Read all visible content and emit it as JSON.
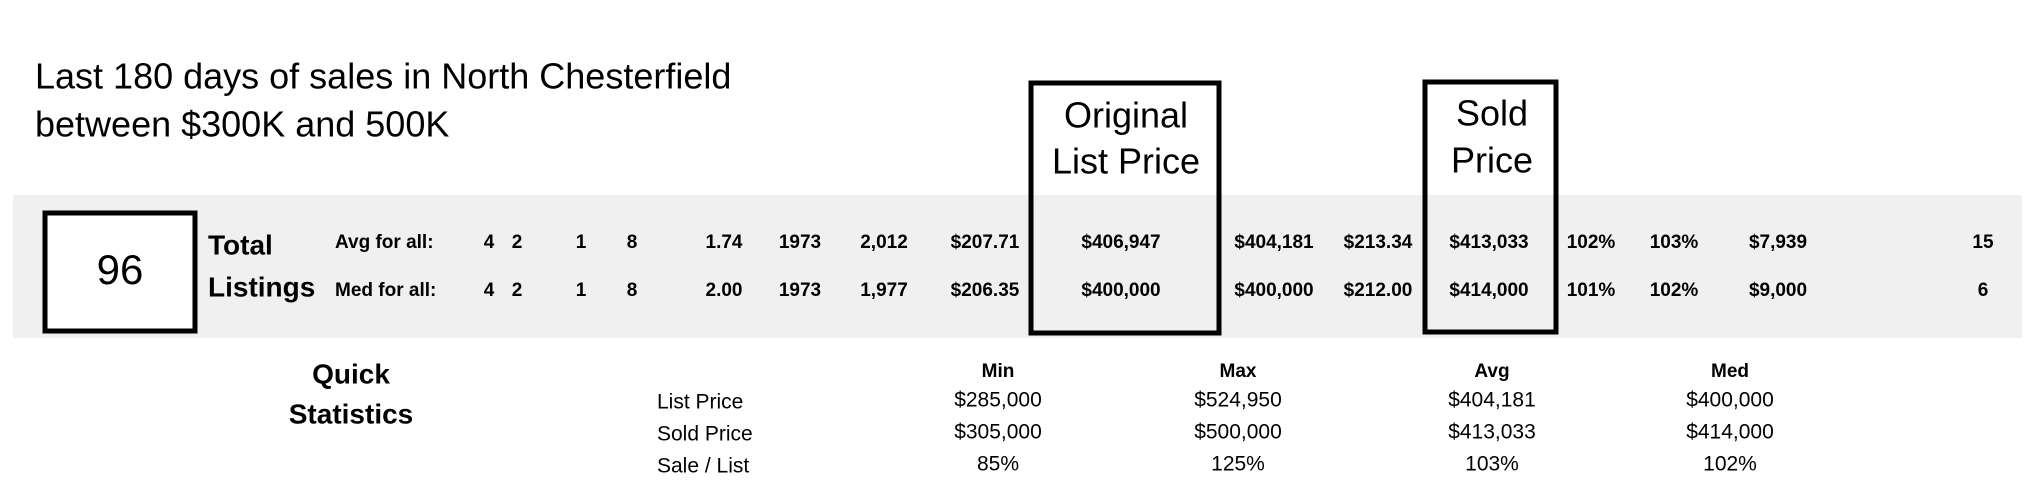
{
  "header": {
    "title_lines": [
      "Last 180 days of sales in North Chesterfield",
      "between $300K and 500K"
    ]
  },
  "summary": {
    "count": "96",
    "count_label_lines": [
      "Total",
      "Listings"
    ],
    "rows": [
      {
        "label": "Avg for all:",
        "values": [
          "4",
          "2",
          "1",
          "8",
          "1.74",
          "1973",
          "2,012",
          "$207.71",
          "$406,947",
          "$404,181",
          "$213.34",
          "$413,033",
          "102%",
          "103%",
          "$7,939",
          "15"
        ]
      },
      {
        "label": "Med for all:",
        "values": [
          "4",
          "2",
          "1",
          "8",
          "2.00",
          "1973",
          "1,977",
          "$206.35",
          "$400,000",
          "$400,000",
          "$212.00",
          "$414,000",
          "101%",
          "102%",
          "$9,000",
          "6"
        ]
      }
    ],
    "highlights": [
      {
        "lines": [
          "Original",
          "List Price"
        ]
      },
      {
        "lines": [
          "Sold",
          "Price"
        ]
      }
    ]
  },
  "quick_stats": {
    "title_lines": [
      "Quick",
      "Statistics"
    ],
    "headers": [
      "Min",
      "Max",
      "Avg",
      "Med"
    ],
    "rows": [
      {
        "label": "List Price",
        "values": [
          "$285,000",
          "$524,950",
          "$404,181",
          "$400,000"
        ]
      },
      {
        "label": "Sold Price",
        "values": [
          "$305,000",
          "$500,000",
          "$413,033",
          "$414,000"
        ]
      },
      {
        "label": "Sale / List",
        "values": [
          "85%",
          "125%",
          "103%",
          "102%"
        ]
      }
    ]
  }
}
